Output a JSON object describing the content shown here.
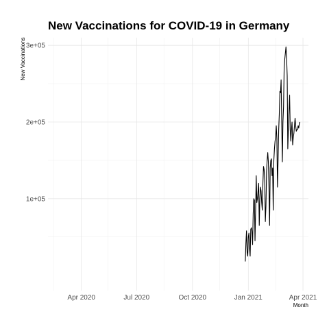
{
  "chart_data": {
    "type": "line",
    "title": "New Vaccinations for COVID-19 in Germany",
    "xlabel": "Month",
    "ylabel": "New Vaccinations",
    "x_range": [
      "2020-02-06",
      "2021-04-10"
    ],
    "x_ticks": [
      {
        "date": "2020-04-01",
        "label": "Apr 2020"
      },
      {
        "date": "2020-07-01",
        "label": "Jul 2020"
      },
      {
        "date": "2020-10-01",
        "label": "Oct 2020"
      },
      {
        "date": "2021-01-01",
        "label": "Jan 2021"
      },
      {
        "date": "2021-04-01",
        "label": "Apr 2021"
      }
    ],
    "x_minor_ticks": [
      "2020-02-15",
      "2020-05-15",
      "2020-08-15",
      "2020-11-15",
      "2021-02-15"
    ],
    "ylim": [
      -20000,
      310000
    ],
    "y_ticks": [
      {
        "value": 100000,
        "label": "1e+05"
      },
      {
        "value": 200000,
        "label": "2e+05"
      },
      {
        "value": 300000,
        "label": "3e+05"
      }
    ],
    "y_minor_ticks": [
      50000,
      150000,
      250000
    ],
    "grid": true,
    "color": "#000000",
    "series": [
      {
        "x": [
          "2020-12-27",
          "2020-12-28",
          "2020-12-29",
          "2020-12-30",
          "2020-12-31",
          "2021-01-01",
          "2021-01-02",
          "2021-01-03",
          "2021-01-04",
          "2021-01-05",
          "2021-01-06",
          "2021-01-07",
          "2021-01-08",
          "2021-01-09",
          "2021-01-10",
          "2021-01-11",
          "2021-01-12",
          "2021-01-13",
          "2021-01-14",
          "2021-01-15",
          "2021-01-16",
          "2021-01-17",
          "2021-01-18",
          "2021-01-19",
          "2021-01-20",
          "2021-01-21",
          "2021-01-22",
          "2021-01-23",
          "2021-01-24",
          "2021-01-25",
          "2021-01-26",
          "2021-01-27",
          "2021-01-28",
          "2021-01-29",
          "2021-01-30",
          "2021-01-31",
          "2021-02-01",
          "2021-02-02",
          "2021-02-03",
          "2021-02-04",
          "2021-02-05",
          "2021-02-06",
          "2021-02-07",
          "2021-02-08",
          "2021-02-09",
          "2021-02-10",
          "2021-02-11",
          "2021-02-12",
          "2021-02-13",
          "2021-02-14",
          "2021-02-15",
          "2021-02-16",
          "2021-02-17",
          "2021-02-18",
          "2021-02-19",
          "2021-02-20",
          "2021-02-21",
          "2021-02-22",
          "2021-02-23",
          "2021-02-24",
          "2021-02-25",
          "2021-02-26",
          "2021-02-27",
          "2021-02-28",
          "2021-03-01",
          "2021-03-02",
          "2021-03-03",
          "2021-03-04",
          "2021-03-05",
          "2021-03-06",
          "2021-03-07",
          "2021-03-08",
          "2021-03-09",
          "2021-03-10",
          "2021-03-11",
          "2021-03-12",
          "2021-03-13",
          "2021-03-14",
          "2021-03-15",
          "2021-03-16",
          "2021-03-17",
          "2021-03-18",
          "2021-03-19",
          "2021-03-20",
          "2021-03-21",
          "2021-03-22",
          "2021-03-23",
          "2021-03-24",
          "2021-03-25",
          "2021-03-26",
          "2021-03-27"
        ],
        "y": [
          18000,
          42000,
          58000,
          30000,
          25000,
          50000,
          55000,
          35000,
          25000,
          60000,
          62000,
          58000,
          40000,
          80000,
          100000,
          98000,
          45000,
          85000,
          130000,
          95000,
          100000,
          110000,
          120000,
          65000,
          100000,
          115000,
          110000,
          95000,
          85000,
          120000,
          142000,
          138000,
          125000,
          70000,
          90000,
          135000,
          150000,
          160000,
          148000,
          115000,
          65000,
          140000,
          150000,
          152000,
          130000,
          140000,
          85000,
          150000,
          165000,
          175000,
          180000,
          195000,
          178000,
          115000,
          150000,
          190000,
          210000,
          240000,
          238000,
          255000,
          200000,
          148000,
          200000,
          220000,
          270000,
          282000,
          290000,
          298000,
          285000,
          260000,
          165000,
          190000,
          215000,
          235000,
          190000,
          175000,
          190000,
          200000,
          170000,
          180000,
          185000,
          195000,
          205000,
          195000,
          188000,
          190000,
          190000,
          195000,
          192000,
          198000,
          200000
        ]
      }
    ]
  }
}
